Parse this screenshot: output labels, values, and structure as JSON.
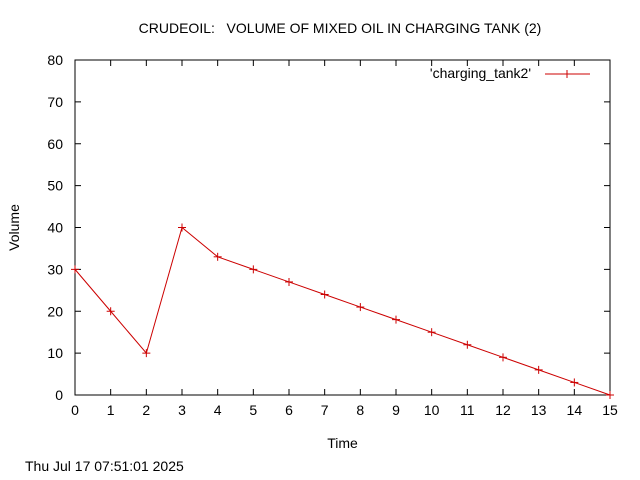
{
  "chart_data": {
    "type": "line",
    "title": "CRUDEOIL:   VOLUME OF MIXED OIL IN CHARGING TANK (2)",
    "xlabel": "Time",
    "ylabel": "Volume",
    "xlim": [
      0,
      15
    ],
    "ylim": [
      0,
      80
    ],
    "x_ticks": [
      "0",
      "1",
      "2",
      "3",
      "4",
      "5",
      "6",
      "7",
      "8",
      "9",
      "10",
      "11",
      "12",
      "13",
      "14",
      "15"
    ],
    "y_ticks": [
      "0",
      "10",
      "20",
      "30",
      "40",
      "50",
      "60",
      "70",
      "80"
    ],
    "grid": false,
    "legend_position": "top-right",
    "series": [
      {
        "name": "'charging_tank2'",
        "color": "#cc0000",
        "marker": "plus",
        "x": [
          0,
          1,
          2,
          3,
          4,
          5,
          6,
          7,
          8,
          9,
          10,
          11,
          12,
          13,
          14,
          15
        ],
        "y": [
          30,
          20,
          10,
          40,
          33,
          30,
          27,
          24,
          21,
          18,
          15,
          12,
          9,
          6,
          3,
          0
        ]
      }
    ]
  },
  "footer": {
    "timestamp": "Thu Jul 17 07:51:01 2025"
  }
}
